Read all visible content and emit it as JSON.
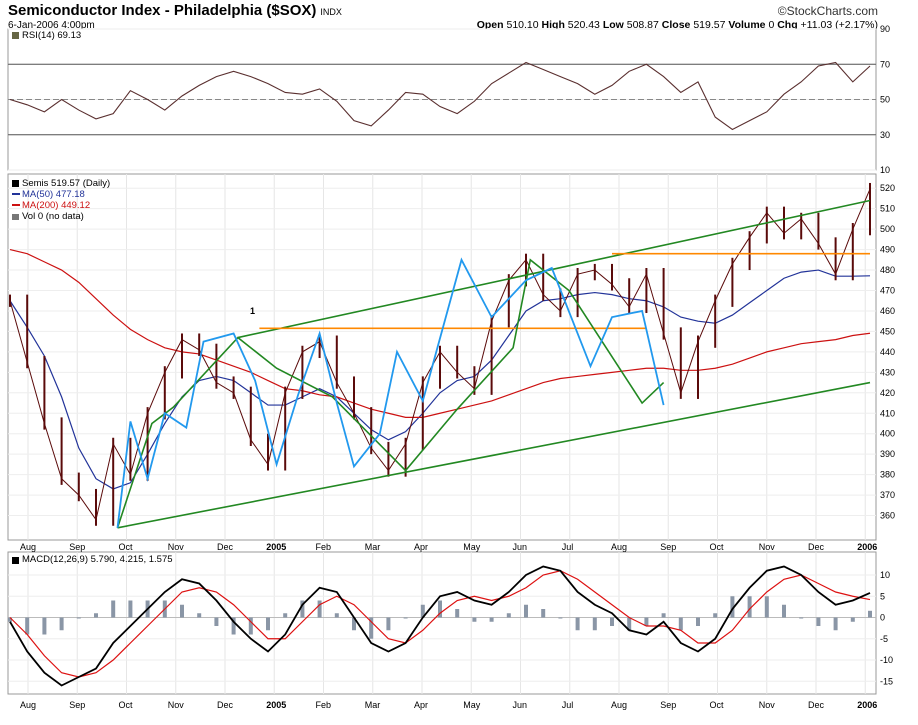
{
  "header": {
    "title": "Semiconductor Index - Philadelphia ($SOX)",
    "exchange": "INDX",
    "date": "6-Jan-2006 4:00pm",
    "brand": "©StockCharts.com",
    "open_label": "Open",
    "open": "510.10",
    "high_label": "High",
    "high": "520.43",
    "low_label": "Low",
    "low": "508.87",
    "close_label": "Close",
    "close": "519.57",
    "volume_label": "Volume",
    "volume": "0",
    "chg_label": "Chg",
    "chg": "+11.03 (+2.17%)"
  },
  "legend": {
    "rsi": "RSI(14) 69.13",
    "price": "Semis 519.57 (Daily)",
    "ma50": "MA(50) 477.18",
    "ma200": "MA(200) 449.12",
    "vol": "Vol 0 (no data)",
    "macd": "MACD(12,26,9) 5.790, 4.215, 1.575"
  },
  "marker_label": "1",
  "chart_data": [
    {
      "panel": "rsi",
      "type": "line",
      "name": "RSI(14)",
      "last": 69.13,
      "levels": [
        30,
        50,
        70
      ],
      "yticks": [
        10,
        30,
        50,
        70,
        90
      ],
      "ylim": [
        10,
        90
      ],
      "x": [
        0,
        4,
        8,
        12,
        16,
        20,
        24,
        28,
        32,
        36,
        40,
        44,
        48,
        52,
        56,
        60,
        64,
        68,
        72,
        76,
        80,
        84,
        88,
        92,
        96,
        100,
        104,
        108,
        112,
        116,
        120,
        124,
        128,
        132,
        136,
        140,
        144,
        148,
        152,
        156,
        160,
        164,
        168,
        172,
        176,
        180,
        184,
        188,
        192,
        196,
        200
      ],
      "values": [
        50,
        47,
        43,
        50,
        44,
        39,
        42,
        55,
        50,
        44,
        52,
        58,
        63,
        66,
        63,
        59,
        54,
        53,
        56,
        49,
        38,
        35,
        44,
        54,
        53,
        46,
        42,
        49,
        59,
        65,
        71,
        67,
        63,
        59,
        53,
        58,
        66,
        70,
        63,
        54,
        60,
        40,
        33,
        38,
        43,
        53,
        60,
        69,
        71,
        60,
        69
      ]
    },
    {
      "panel": "price",
      "type": "line",
      "title": "Semiconductor Index - Philadelphia ($SOX)",
      "xticks": [
        "Aug",
        "Sep",
        "Oct",
        "Nov",
        "Dec",
        "2005",
        "Feb",
        "Mar",
        "Apr",
        "May",
        "Jun",
        "Jul",
        "Aug",
        "Sep",
        "Oct",
        "Nov",
        "Dec",
        "2006"
      ],
      "yticks": [
        360,
        370,
        380,
        390,
        400,
        410,
        420,
        430,
        440,
        450,
        460,
        470,
        480,
        490,
        500,
        510,
        520
      ],
      "ylim": [
        350,
        525
      ],
      "x": [
        0,
        4,
        8,
        12,
        16,
        20,
        24,
        28,
        32,
        36,
        40,
        44,
        48,
        52,
        56,
        60,
        64,
        68,
        72,
        76,
        80,
        84,
        88,
        92,
        96,
        100,
        104,
        108,
        112,
        116,
        120,
        124,
        128,
        132,
        136,
        140,
        144,
        148,
        152,
        156,
        160,
        164,
        168,
        172,
        176,
        180,
        184,
        188,
        192,
        196,
        200
      ],
      "series": [
        {
          "name": "Semis",
          "values": [
            465,
            435,
            405,
            378,
            370,
            358,
            395,
            380,
            410,
            430,
            446,
            441,
            425,
            420,
            397,
            385,
            420,
            440,
            445,
            425,
            410,
            393,
            382,
            395,
            425,
            440,
            430,
            422,
            455,
            475,
            485,
            468,
            460,
            478,
            480,
            473,
            462,
            478,
            449,
            420,
            445,
            465,
            483,
            496,
            508,
            498,
            505,
            493,
            478,
            500,
            519.57
          ]
        },
        {
          "name": "MA(50)",
          "values": [
            465,
            452,
            438,
            418,
            393,
            378,
            373,
            376,
            390,
            405,
            418,
            426,
            428,
            426,
            420,
            414,
            414,
            418,
            422,
            418,
            410,
            402,
            397,
            401,
            410,
            420,
            426,
            428,
            436,
            448,
            460,
            465,
            466,
            468,
            469,
            468,
            466,
            465,
            462,
            457,
            455,
            454,
            458,
            464,
            470,
            476,
            479,
            480,
            477,
            477,
            477.18
          ]
        },
        {
          "name": "MA(200)",
          "values": [
            490,
            488,
            484,
            480,
            474,
            466,
            458,
            451,
            446,
            442,
            440,
            439,
            436,
            433,
            430,
            426,
            422,
            421,
            419,
            418,
            415,
            412,
            410,
            408,
            408,
            410,
            412,
            414,
            416,
            419,
            422,
            425,
            427,
            428,
            429,
            430,
            431,
            432,
            432,
            431,
            431,
            432,
            434,
            437,
            440,
            442,
            444,
            445,
            446,
            448,
            449.12
          ]
        },
        {
          "name": "Wave (blue)",
          "values": [
            null,
            null,
            null,
            null,
            null,
            null,
            null,
            null,
            null,
            null,
            null,
            null,
            null,
            null,
            null,
            null,
            null,
            null,
            null,
            null,
            null,
            null,
            null,
            null,
            null,
            null,
            null,
            null,
            null,
            null,
            null,
            null,
            null,
            null,
            null,
            null,
            null,
            null,
            null,
            null,
            null,
            null,
            null,
            null,
            null,
            null,
            null,
            null,
            null,
            null,
            null
          ]
        }
      ],
      "channel": {
        "upper": {
          "x": [
            53,
            200
          ],
          "values": [
            447,
            514
          ]
        },
        "lower": {
          "x": [
            25,
            200
          ],
          "values": [
            354,
            425
          ]
        },
        "resistance_1": {
          "x": [
            58,
            148
          ],
          "values": [
            451.5,
            451.5
          ]
        },
        "resistance_2": {
          "x": [
            140,
            200
          ],
          "values": [
            488,
            488
          ]
        }
      },
      "waves_blue": {
        "x": [
          25,
          28,
          32,
          36,
          41,
          45,
          52,
          57,
          62,
          67,
          72,
          76,
          80,
          86,
          90,
          96,
          105,
          112,
          120,
          126,
          135,
          140,
          147,
          152
        ],
        "values": [
          354,
          406,
          378,
          410,
          403,
          445,
          449,
          426,
          385,
          419,
          449,
          415,
          384,
          400,
          440,
          416,
          485,
          457,
          475,
          481,
          433,
          457,
          460,
          414
        ]
      },
      "waves_green": {
        "x": [
          25,
          33,
          38,
          53,
          62,
          75,
          92,
          104,
          117,
          121,
          130,
          147,
          152
        ],
        "values": [
          354,
          405,
          413,
          447,
          432,
          418,
          382,
          412,
          442,
          485,
          470,
          415,
          425
        ]
      }
    },
    {
      "panel": "macd",
      "type": "line",
      "name": "MACD(12,26,9)",
      "yticks": [
        10,
        5,
        0,
        -5,
        -10,
        -15
      ],
      "ylim": [
        -18,
        14
      ],
      "x": [
        0,
        4,
        8,
        12,
        16,
        20,
        24,
        28,
        32,
        36,
        40,
        44,
        48,
        52,
        56,
        60,
        64,
        68,
        72,
        76,
        80,
        84,
        88,
        92,
        96,
        100,
        104,
        108,
        112,
        116,
        120,
        124,
        128,
        132,
        136,
        140,
        144,
        148,
        152,
        156,
        160,
        164,
        168,
        172,
        176,
        180,
        184,
        188,
        192,
        196,
        200
      ],
      "series": [
        {
          "name": "MACD",
          "values": [
            -1,
            -8,
            -13,
            -16,
            -14,
            -12,
            -6,
            -2,
            2,
            6,
            9,
            8,
            4,
            -1,
            -5,
            -8,
            -4,
            3,
            7,
            6,
            0,
            -6,
            -8,
            -6,
            0,
            5,
            6,
            4,
            3,
            6,
            10,
            12,
            11,
            6,
            3,
            1,
            -3,
            -4,
            -1,
            -6,
            -8,
            -5,
            2,
            7,
            11,
            12,
            10,
            6,
            3,
            4,
            5.79
          ]
        },
        {
          "name": "Signal",
          "values": [
            0,
            -4,
            -9,
            -13,
            -14,
            -13,
            -10,
            -6,
            -2,
            2,
            6,
            7,
            6,
            3,
            -1,
            -5,
            -5,
            -1,
            3,
            5,
            3,
            -1,
            -5,
            -6,
            -3,
            1,
            4,
            5,
            4,
            5,
            7,
            10,
            11,
            9,
            6,
            3,
            0,
            -2,
            -2,
            -3,
            -6,
            -6,
            -3,
            2,
            6,
            9,
            10,
            8,
            6,
            5,
            4.215
          ]
        },
        {
          "name": "Histogram",
          "values": [
            -1,
            -4,
            -4,
            -3,
            0,
            1,
            4,
            4,
            4,
            4,
            3,
            1,
            -2,
            -4,
            -4,
            -3,
            1,
            4,
            4,
            1,
            -3,
            -5,
            -3,
            0,
            3,
            4,
            2,
            -1,
            -1,
            1,
            3,
            2,
            0,
            -3,
            -3,
            -2,
            -3,
            -2,
            1,
            -3,
            -2,
            1,
            5,
            5,
            5,
            3,
            0,
            -2,
            -3,
            -1,
            1.575
          ]
        }
      ]
    }
  ]
}
